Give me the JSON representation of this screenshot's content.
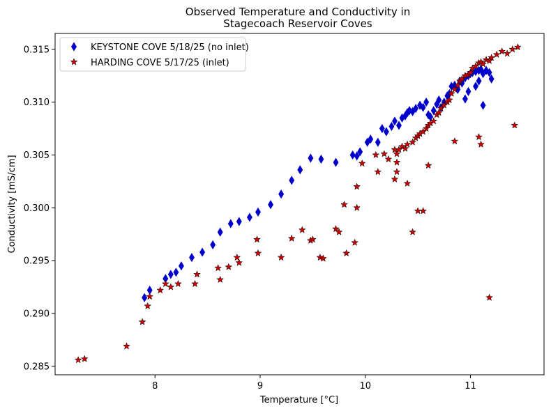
{
  "chart_data": {
    "type": "scatter",
    "title_lines": [
      "Observed Temperature and Conductivity in",
      "Stagecoach Reservoir Coves"
    ],
    "xlabel": "Temperature [°C]",
    "ylabel": "Conductivity [mS/cm]",
    "xlim": [
      7.05,
      11.7
    ],
    "ylim": [
      0.2842,
      0.3165
    ],
    "xticks": [
      8,
      9,
      10,
      11
    ],
    "xtick_labels": [
      "8",
      "9",
      "10",
      "11"
    ],
    "yticks": [
      0.285,
      0.29,
      0.295,
      0.3,
      0.305,
      0.31,
      0.315
    ],
    "ytick_labels": [
      "0.285",
      "0.290",
      "0.295",
      "0.300",
      "0.305",
      "0.310",
      "0.315"
    ],
    "grid": false,
    "legend": "upper-left",
    "series": [
      {
        "name": "KEYSTONE COVE 5/18/25 (no inlet)",
        "marker": "diamond",
        "color": "#0000cc",
        "x": [
          7.9,
          7.95,
          8.1,
          8.15,
          8.2,
          8.25,
          8.35,
          8.45,
          8.55,
          8.62,
          8.72,
          8.8,
          8.9,
          8.98,
          9.1,
          9.2,
          9.3,
          9.38,
          9.48,
          9.58,
          9.72,
          9.88,
          9.92,
          9.95,
          10.02,
          10.05,
          10.12,
          10.16,
          10.2,
          10.25,
          10.28,
          10.32,
          10.35,
          10.38,
          10.4,
          10.42,
          10.45,
          10.48,
          10.52,
          10.55,
          10.58,
          10.6,
          10.62,
          10.65,
          10.68,
          10.7,
          10.72,
          10.75,
          10.78,
          10.8,
          10.82,
          10.85,
          10.88,
          10.9,
          10.92,
          10.95,
          10.98,
          11.0,
          11.02,
          11.05,
          11.08,
          11.1,
          11.12,
          11.15,
          11.18,
          11.2,
          10.95,
          10.98,
          11.05,
          11.08,
          11.12
        ],
        "y": [
          0.2915,
          0.2922,
          0.2933,
          0.2937,
          0.2939,
          0.2945,
          0.2953,
          0.2958,
          0.2965,
          0.2977,
          0.2985,
          0.2987,
          0.2991,
          0.2996,
          0.3003,
          0.3013,
          0.3026,
          0.3036,
          0.3047,
          0.3046,
          0.3043,
          0.305,
          0.3049,
          0.3053,
          0.3062,
          0.3065,
          0.3062,
          0.3075,
          0.3072,
          0.3077,
          0.3082,
          0.3078,
          0.3085,
          0.3087,
          0.309,
          0.3092,
          0.3091,
          0.3094,
          0.3097,
          0.3095,
          0.31,
          0.3088,
          0.3086,
          0.3092,
          0.3098,
          0.3102,
          0.3095,
          0.31,
          0.3106,
          0.3108,
          0.3115,
          0.3116,
          0.3112,
          0.312,
          0.3118,
          0.3123,
          0.3125,
          0.3127,
          0.3128,
          0.3129,
          0.313,
          0.3131,
          0.3127,
          0.313,
          0.3128,
          0.3122,
          0.3103,
          0.311,
          0.3115,
          0.312,
          0.3097
        ]
      },
      {
        "name": "HARDING COVE 5/17/25 (inlet)",
        "marker": "star",
        "color": "#cc0000",
        "x": [
          7.27,
          7.33,
          7.73,
          7.88,
          7.93,
          7.95,
          8.05,
          8.1,
          8.15,
          8.22,
          8.38,
          8.4,
          8.6,
          8.62,
          8.7,
          8.78,
          8.8,
          8.97,
          8.98,
          9.2,
          9.3,
          9.4,
          9.48,
          9.5,
          9.57,
          9.6,
          9.72,
          9.75,
          9.8,
          9.82,
          9.9,
          9.92,
          9.92,
          9.97,
          10.1,
          10.12,
          10.18,
          10.22,
          10.28,
          10.3,
          10.3,
          10.32,
          10.35,
          10.38,
          10.4,
          10.45,
          10.48,
          10.5,
          10.52,
          10.55,
          10.58,
          10.6,
          10.62,
          10.65,
          10.68,
          10.7,
          10.72,
          10.75,
          10.78,
          10.8,
          10.82,
          10.85,
          10.88,
          10.9,
          10.92,
          10.95,
          10.98,
          11.0,
          11.02,
          11.05,
          11.08,
          11.1,
          11.12,
          11.15,
          11.18,
          11.2,
          11.25,
          11.3,
          11.35,
          11.4,
          11.45,
          10.28,
          10.3,
          10.4,
          10.45,
          10.5,
          10.55,
          10.6,
          10.85,
          11.08,
          11.1,
          11.18,
          11.42
        ],
        "y": [
          0.2856,
          0.2857,
          0.2869,
          0.2892,
          0.2907,
          0.2916,
          0.2922,
          0.2928,
          0.2925,
          0.2928,
          0.2928,
          0.2937,
          0.2943,
          0.2932,
          0.2944,
          0.2953,
          0.2948,
          0.297,
          0.2957,
          0.2953,
          0.2971,
          0.2979,
          0.2969,
          0.297,
          0.2953,
          0.2952,
          0.298,
          0.2977,
          0.3003,
          0.2957,
          0.2967,
          0.3,
          0.302,
          0.3042,
          0.305,
          0.3034,
          0.3051,
          0.3046,
          0.3055,
          0.3043,
          0.3051,
          0.3055,
          0.3058,
          0.3056,
          0.306,
          0.3062,
          0.3066,
          0.3068,
          0.307,
          0.3072,
          0.3075,
          0.3078,
          0.308,
          0.3082,
          0.3088,
          0.309,
          0.3094,
          0.3097,
          0.31,
          0.3102,
          0.3108,
          0.3112,
          0.3116,
          0.312,
          0.3122,
          0.3125,
          0.3126,
          0.3128,
          0.3132,
          0.3134,
          0.3137,
          0.3138,
          0.3136,
          0.314,
          0.3139,
          0.3142,
          0.3145,
          0.3148,
          0.3146,
          0.315,
          0.3152,
          0.3027,
          0.3034,
          0.3023,
          0.2977,
          0.2997,
          0.2997,
          0.304,
          0.3063,
          0.3067,
          0.306,
          0.2915,
          0.3078
        ]
      }
    ]
  }
}
